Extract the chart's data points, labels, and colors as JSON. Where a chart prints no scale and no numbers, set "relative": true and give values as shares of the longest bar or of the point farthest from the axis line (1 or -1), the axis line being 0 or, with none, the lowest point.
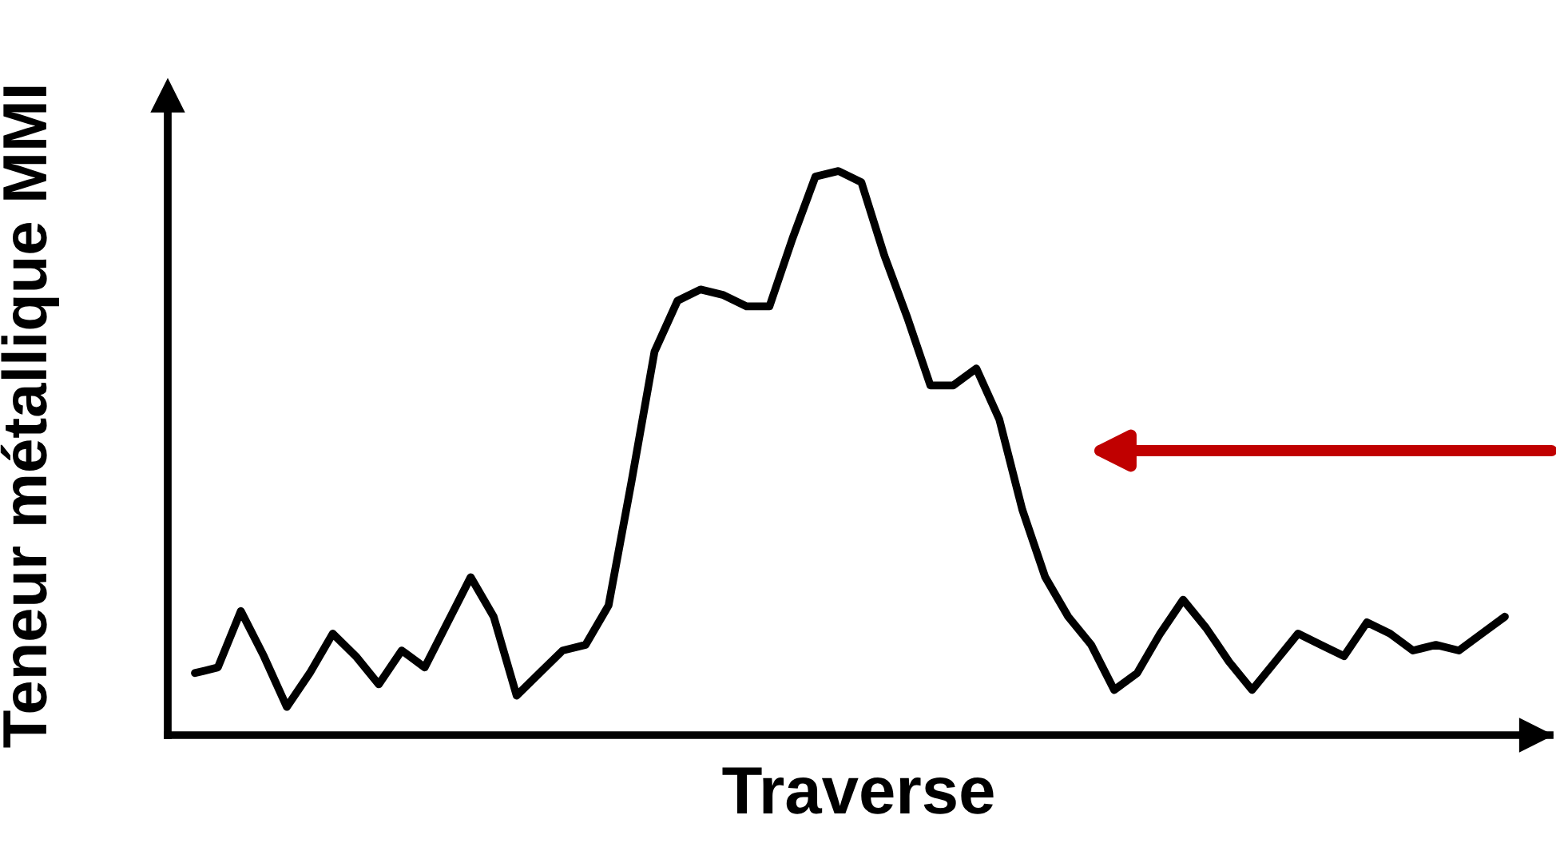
{
  "chart_data": {
    "type": "line",
    "relative": true,
    "xlabel": "Traverse",
    "ylabel": "Teneur métallique MMI",
    "color": "#000000",
    "grid": false,
    "legend": false,
    "marker": "none",
    "line_style": "solid",
    "categories": [
      null,
      null,
      null,
      null,
      null,
      null,
      null,
      null,
      null,
      null,
      null,
      null,
      null,
      null,
      null,
      null,
      null,
      null,
      null,
      null,
      null,
      null,
      null,
      null,
      null,
      null,
      null,
      null,
      null,
      null,
      null,
      null,
      null,
      null,
      null,
      null,
      null,
      null,
      null,
      null,
      null,
      null,
      null,
      null,
      null,
      null,
      null,
      null,
      null,
      null,
      null,
      null,
      null,
      null,
      null,
      null,
      null,
      null
    ],
    "values": [
      0.11,
      0.12,
      0.22,
      0.14,
      0.05,
      0.11,
      0.18,
      0.14,
      0.09,
      0.15,
      0.12,
      0.2,
      0.28,
      0.21,
      0.07,
      0.11,
      0.15,
      0.16,
      0.23,
      0.45,
      0.68,
      0.77,
      0.79,
      0.78,
      0.76,
      0.76,
      0.88,
      0.99,
      1,
      0.98,
      0.85,
      0.74,
      0.62,
      0.62,
      0.65,
      0.56,
      0.4,
      0.28,
      0.21,
      0.16,
      0.08,
      0.11,
      0.18,
      0.24,
      0.19,
      0.13,
      0.08,
      0.13,
      0.18,
      0.16,
      0.14,
      0.2,
      0.18,
      0.15,
      0.16,
      0.15,
      0.18,
      0.21
    ]
  }
}
